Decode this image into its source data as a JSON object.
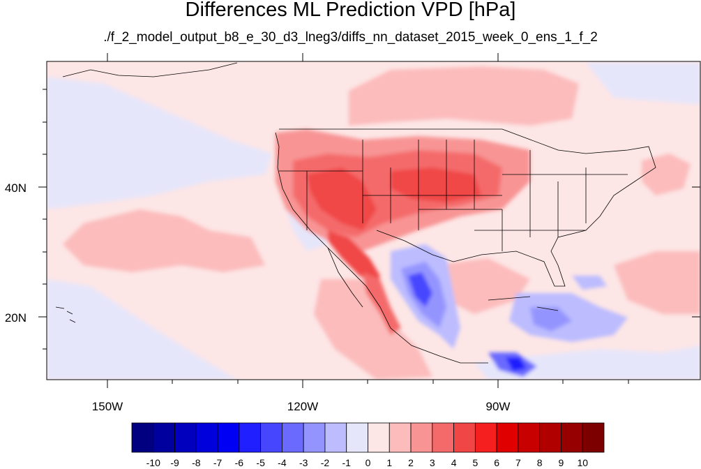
{
  "title": "Differences ML Prediction VPD [hPa]",
  "subtitle": "./f_2_model_output_b8_e_30_d3_lneg3/diffs_nn_dataset_2015_week_0_ens_1_f_2",
  "map": {
    "lon_labels": [
      "150W",
      "120W",
      "90W"
    ],
    "lat_labels": [
      "40N",
      "20N"
    ]
  },
  "colorbar": {
    "labels": [
      "-10",
      "-9",
      "-8",
      "-7",
      "-6",
      "-5",
      "-4",
      "-3",
      "-2",
      "-1",
      "0",
      "1",
      "2",
      "3",
      "4",
      "5",
      "6",
      "7",
      "8",
      "9",
      "10"
    ],
    "colors": [
      "#000080",
      "#00009e",
      "#0000be",
      "#0000dc",
      "#0000f5",
      "#1f1fff",
      "#4646ff",
      "#6a6aff",
      "#9494ff",
      "#bcbcff",
      "#e6e6fa",
      "#fde6e6",
      "#fcbcbc",
      "#f89494",
      "#f46a6a",
      "#f04646",
      "#f51f1f",
      "#e00000",
      "#c80000",
      "#b00000",
      "#960000",
      "#7d0000"
    ]
  }
}
